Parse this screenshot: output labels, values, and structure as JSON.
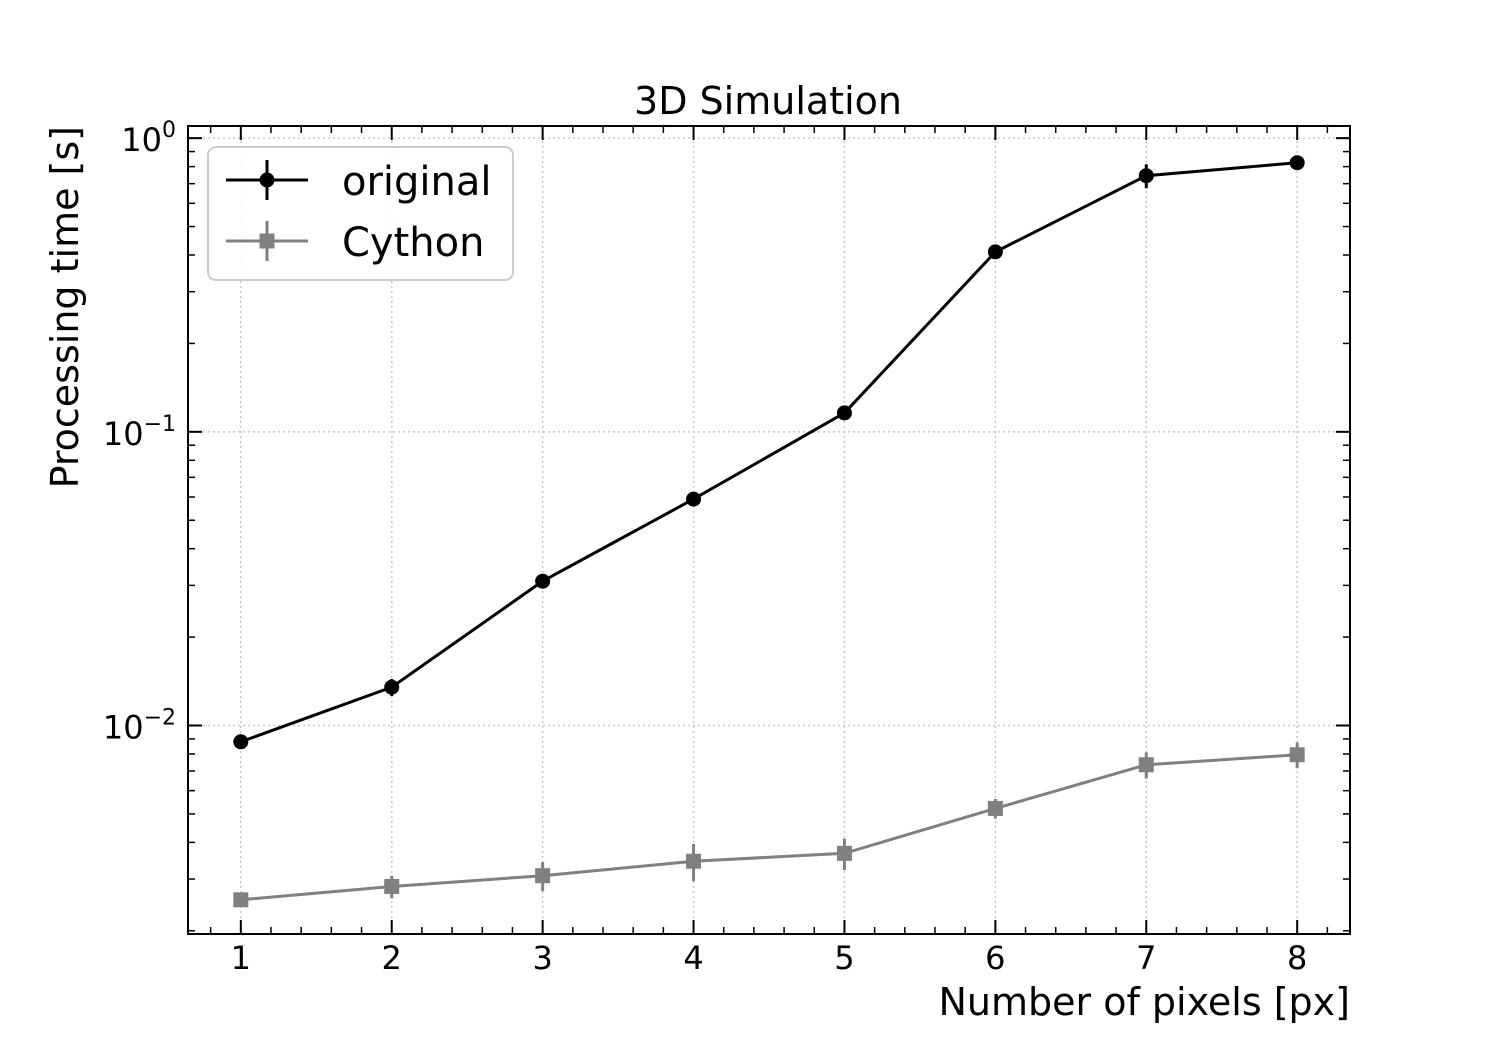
{
  "chart_data": {
    "type": "line",
    "title": "3D Simulation",
    "xlabel": "Number of pixels [px]",
    "ylabel": "Processing time [s]",
    "x": [
      1,
      2,
      3,
      4,
      5,
      6,
      7,
      8
    ],
    "xlim": [
      0.65,
      8.35
    ],
    "xticks": [
      "1",
      "2",
      "3",
      "4",
      "5",
      "6",
      "7",
      "8"
    ],
    "yscale": "log",
    "ylim": [
      0.00195,
      1.1
    ],
    "yticks": [
      {
        "value": 0.01,
        "base": "10",
        "exp": "−2"
      },
      {
        "value": 0.1,
        "base": "10",
        "exp": "−1"
      },
      {
        "value": 1,
        "base": "10",
        "exp": "0"
      }
    ],
    "grid": true,
    "legend_position": "top-left",
    "series": [
      {
        "name": "original",
        "color": "#000000",
        "marker": "circle",
        "values": [
          0.0088,
          0.0135,
          0.031,
          0.059,
          0.116,
          0.41,
          0.745,
          0.825
        ],
        "err_low": [
          0.0003,
          0.0009,
          0.001,
          0.003,
          0.004,
          0.015,
          0.07,
          0.02
        ],
        "err_high": [
          0.0003,
          0.0009,
          0.001,
          0.003,
          0.004,
          0.015,
          0.07,
          0.02
        ]
      },
      {
        "name": "Cython",
        "color": "#808080",
        "marker": "square",
        "values": [
          0.00255,
          0.00283,
          0.00308,
          0.00345,
          0.00367,
          0.00522,
          0.00735,
          0.00795
        ],
        "err_low": [
          0.00014,
          0.00025,
          0.00035,
          0.0005,
          0.00045,
          0.0004,
          0.00075,
          0.0008
        ],
        "err_high": [
          0.00014,
          0.00025,
          0.00035,
          0.0005,
          0.00045,
          0.0004,
          0.00075,
          0.0008
        ]
      }
    ]
  }
}
